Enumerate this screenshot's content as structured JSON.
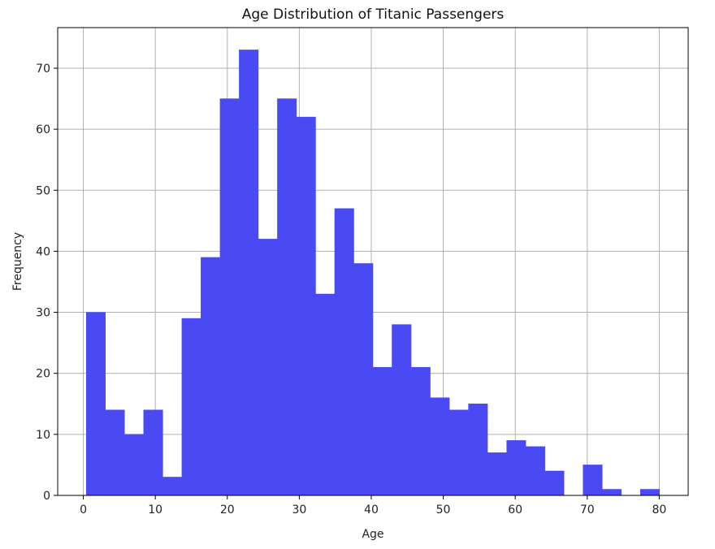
{
  "chart_data": {
    "type": "bar",
    "title": "Age Distribution of Titanic Passengers",
    "xlabel": "Age",
    "ylabel": "Frequency",
    "bin_edges": [
      0.42,
      3.07,
      5.73,
      8.38,
      11.04,
      13.69,
      16.34,
      19.0,
      21.65,
      24.31,
      26.96,
      29.61,
      32.27,
      34.92,
      37.58,
      40.23,
      42.88,
      45.54,
      48.19,
      50.85,
      53.5,
      56.15,
      58.81,
      61.46,
      64.12,
      66.77,
      69.42,
      72.08,
      74.73,
      77.39,
      80.04
    ],
    "values": [
      30,
      14,
      10,
      14,
      3,
      29,
      39,
      65,
      73,
      42,
      65,
      62,
      33,
      47,
      38,
      21,
      28,
      21,
      16,
      14,
      15,
      7,
      9,
      8,
      4,
      0,
      5,
      1,
      0,
      1
    ],
    "xlim": [
      -3.56,
      84.02
    ],
    "ylim": [
      0,
      76.65
    ],
    "xticks": [
      0,
      10,
      20,
      30,
      40,
      50,
      60,
      70,
      80
    ],
    "yticks": [
      0,
      10,
      20,
      30,
      40,
      50,
      60,
      70
    ],
    "grid": true,
    "bar_color": "#4a4af5",
    "bar_edge_color": "#4a4af5",
    "grid_color": "#b0b0b0",
    "axis_color": "#000000"
  }
}
